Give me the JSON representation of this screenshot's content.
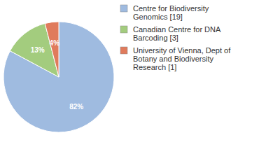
{
  "chart_data": {
    "type": "pie",
    "categories": [
      "Centre for Biodiversity Genomics [19]",
      "Canadian Centre for DNA Barcoding [3]",
      "University of Vienna, Dept of Botany and Biodiversity Research [1]"
    ],
    "values": [
      82,
      13,
      4
    ],
    "value_labels": [
      "82%",
      "13%",
      "4%"
    ],
    "colors": [
      "#9fbbe0",
      "#a3cc7e",
      "#e07b5c"
    ],
    "data_labels": true,
    "legend": "right"
  }
}
